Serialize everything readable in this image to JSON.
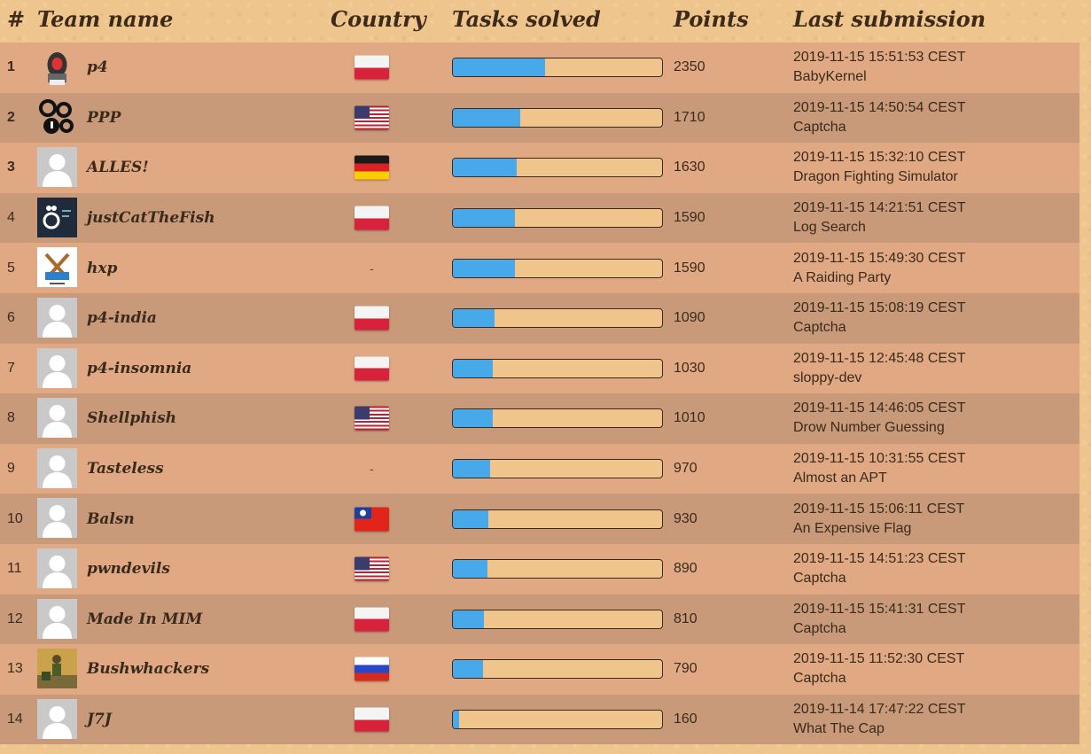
{
  "header": {
    "rank": "#",
    "team": "Team name",
    "country": "Country",
    "tasks": "Tasks solved",
    "points": "Points",
    "last": "Last submission"
  },
  "rows": [
    {
      "rank": "1",
      "team": "p4",
      "avatar": "p4-logo",
      "country": "pl",
      "progress": 0.44,
      "points": "2350",
      "time": "2019-11-15 15:51:53 CEST",
      "task": "BabyKernel"
    },
    {
      "rank": "2",
      "team": "PPP",
      "avatar": "ppp-logo",
      "country": "us",
      "progress": 0.32,
      "points": "1710",
      "time": "2019-11-15 14:50:54 CEST",
      "task": "Captcha"
    },
    {
      "rank": "3",
      "team": "ALLES!",
      "avatar": "default",
      "country": "de",
      "progress": 0.305,
      "points": "1630",
      "time": "2019-11-15 15:32:10 CEST",
      "task": "Dragon Fighting Simulator"
    },
    {
      "rank": "4",
      "team": "justCatTheFish",
      "avatar": "jctf-logo",
      "country": "pl",
      "progress": 0.295,
      "points": "1590",
      "time": "2019-11-15 14:21:51 CEST",
      "task": "Log Search"
    },
    {
      "rank": "5",
      "team": "hxp",
      "avatar": "hxp-logo",
      "country": "-",
      "progress": 0.295,
      "points": "1590",
      "time": "2019-11-15 15:49:30 CEST",
      "task": "A Raiding Party"
    },
    {
      "rank": "6",
      "team": "p4-india",
      "avatar": "default",
      "country": "pl",
      "progress": 0.2,
      "points": "1090",
      "time": "2019-11-15 15:08:19 CEST",
      "task": "Captcha"
    },
    {
      "rank": "7",
      "team": "p4-insomnia",
      "avatar": "default",
      "country": "pl",
      "progress": 0.19,
      "points": "1030",
      "time": "2019-11-15 12:45:48 CEST",
      "task": "sloppy-dev"
    },
    {
      "rank": "8",
      "team": "Shellphish",
      "avatar": "default",
      "country": "us",
      "progress": 0.19,
      "points": "1010",
      "time": "2019-11-15 14:46:05 CEST",
      "task": "Drow Number Guessing"
    },
    {
      "rank": "9",
      "team": "Tasteless",
      "avatar": "default",
      "country": "-",
      "progress": 0.18,
      "points": "970",
      "time": "2019-11-15 10:31:55 CEST",
      "task": "Almost an APT"
    },
    {
      "rank": "10",
      "team": "Balsn",
      "avatar": "default",
      "country": "tw",
      "progress": 0.17,
      "points": "930",
      "time": "2019-11-15 15:06:11 CEST",
      "task": "An Expensive Flag"
    },
    {
      "rank": "11",
      "team": "pwndevils",
      "avatar": "default",
      "country": "us",
      "progress": 0.165,
      "points": "890",
      "time": "2019-11-15 14:51:23 CEST",
      "task": "Captcha"
    },
    {
      "rank": "12",
      "team": "Made In MIM",
      "avatar": "default",
      "country": "pl",
      "progress": 0.15,
      "points": "810",
      "time": "2019-11-15 15:41:31 CEST",
      "task": "Captcha"
    },
    {
      "rank": "13",
      "team": "Bushwhackers",
      "avatar": "bushwhackers-logo",
      "country": "ru",
      "progress": 0.145,
      "points": "790",
      "time": "2019-11-15 11:52:30 CEST",
      "task": "Captcha"
    },
    {
      "rank": "14",
      "team": "J7J",
      "avatar": "default",
      "country": "pl",
      "progress": 0.03,
      "points": "160",
      "time": "2019-11-14 17:47:22 CEST",
      "task": "What The Cap"
    }
  ],
  "colors": {
    "bar_fill": "#47a9ea",
    "bar_track": "#f0c58b",
    "row_light": "#e0a983",
    "row_dark": "#c89a7a"
  }
}
